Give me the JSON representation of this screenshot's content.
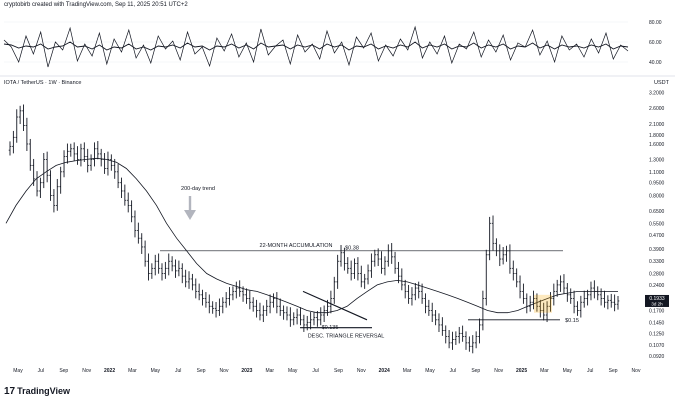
{
  "header": {
    "credit": "cryptobirb created with TradingView.com, Sep 11, 2025 20:51 UTC+2"
  },
  "main": {
    "symbol": "IOTA / TetherUS · 1W · Binance",
    "unit": "USDT"
  },
  "footer": {
    "brand": "TradingView",
    "logo_icon": "tradingview-logo-icon"
  },
  "chart_data": [
    {
      "type": "line",
      "panel": "oscillator",
      "y_ticks": [
        "80.00",
        "60.00",
        "40.00"
      ],
      "ylim": [
        30,
        90
      ],
      "series": [
        {
          "values": [
            62,
            55,
            40,
            66,
            48,
            70,
            35,
            60,
            52,
            74,
            41,
            58,
            46,
            69,
            38,
            63,
            50,
            72,
            44,
            57,
            39,
            66,
            53,
            61,
            42,
            70,
            48,
            55,
            36,
            64,
            51,
            68,
            45,
            59,
            40,
            73,
            47,
            56,
            62,
            38,
            67,
            50,
            58,
            43,
            71,
            49,
            60,
            37,
            65,
            54,
            69,
            41,
            57,
            46,
            63,
            52,
            75,
            44,
            60,
            48,
            66,
            39,
            58,
            53,
            70,
            45,
            62,
            50,
            67,
            42,
            59,
            55,
            72,
            47,
            61,
            40,
            66,
            52,
            58,
            45,
            63,
            49,
            69,
            43,
            57,
            51
          ]
        },
        {
          "values": [
            58,
            57,
            54,
            56,
            55,
            58,
            53,
            55,
            56,
            60,
            55,
            56,
            53,
            57,
            52,
            55,
            54,
            58,
            53,
            55,
            52,
            56,
            55,
            57,
            54,
            59,
            55,
            56,
            52,
            56,
            55,
            58,
            54,
            57,
            53,
            59,
            55,
            56,
            57,
            53,
            57,
            55,
            57,
            53,
            58,
            55,
            57,
            52,
            56,
            55,
            58,
            53,
            56,
            54,
            57,
            55,
            60,
            54,
            57,
            55,
            58,
            53,
            56,
            55,
            59,
            54,
            57,
            55,
            58,
            53,
            56,
            55,
            59,
            54,
            57,
            53,
            57,
            55,
            56,
            54,
            57,
            55,
            58,
            53,
            56,
            55
          ]
        }
      ]
    },
    {
      "type": "ohlc",
      "panel": "price",
      "title": "",
      "xlabel": "",
      "ylabel": "USDT",
      "log_scale": true,
      "ylim": [
        0.085,
        3.4
      ],
      "y_ticks": [
        "3.2000",
        "2.6000",
        "2.1000",
        "1.8000",
        "1.6000",
        "1.3000",
        "1.1000",
        "0.9500",
        "0.8000",
        "0.6500",
        "0.5500",
        "0.4700",
        "0.3900",
        "0.3300",
        "0.2800",
        "0.2400",
        "0.2000",
        "0.1700",
        "0.1450",
        "0.1250",
        "0.1070",
        "0.0920"
      ],
      "x_ticks": [
        "May",
        "Jul",
        "Sep",
        "Nov",
        "2022",
        "Mar",
        "May",
        "Jul",
        "Sep",
        "Nov",
        "2023",
        "Mar",
        "May",
        "Jul",
        "Sep",
        "Nov",
        "2024",
        "Mar",
        "May",
        "Jul",
        "Sep",
        "Nov",
        "2025",
        "Mar",
        "May",
        "Jul",
        "Sep",
        "Nov"
      ],
      "closes": [
        1.55,
        1.75,
        2.3,
        2.5,
        2.05,
        1.6,
        1.2,
        1.0,
        0.85,
        0.95,
        1.3,
        1.05,
        0.8,
        0.7,
        0.9,
        1.1,
        1.35,
        1.45,
        1.5,
        1.4,
        1.3,
        1.5,
        1.35,
        1.2,
        1.3,
        1.5,
        1.4,
        1.3,
        1.15,
        1.3,
        1.2,
        1.1,
        0.95,
        0.85,
        0.75,
        0.7,
        0.6,
        0.5,
        0.45,
        0.4,
        0.33,
        0.28,
        0.3,
        0.33,
        0.3,
        0.28,
        0.3,
        0.33,
        0.31,
        0.29,
        0.3,
        0.27,
        0.25,
        0.26,
        0.24,
        0.22,
        0.21,
        0.2,
        0.19,
        0.18,
        0.175,
        0.17,
        0.18,
        0.19,
        0.2,
        0.21,
        0.22,
        0.23,
        0.22,
        0.21,
        0.2,
        0.19,
        0.18,
        0.17,
        0.16,
        0.17,
        0.18,
        0.19,
        0.2,
        0.18,
        0.17,
        0.165,
        0.16,
        0.15,
        0.155,
        0.16,
        0.15,
        0.14,
        0.145,
        0.15,
        0.155,
        0.15,
        0.16,
        0.17,
        0.18,
        0.2,
        0.25,
        0.33,
        0.37,
        0.32,
        0.3,
        0.28,
        0.32,
        0.28,
        0.25,
        0.26,
        0.29,
        0.33,
        0.36,
        0.34,
        0.3,
        0.33,
        0.38,
        0.35,
        0.3,
        0.27,
        0.24,
        0.22,
        0.2,
        0.21,
        0.23,
        0.22,
        0.2,
        0.18,
        0.17,
        0.16,
        0.15,
        0.14,
        0.13,
        0.12,
        0.11,
        0.115,
        0.12,
        0.125,
        0.12,
        0.11,
        0.105,
        0.11,
        0.12,
        0.14,
        0.2,
        0.36,
        0.55,
        0.42,
        0.38,
        0.34,
        0.36,
        0.38,
        0.3,
        0.28,
        0.25,
        0.22,
        0.2,
        0.18,
        0.19,
        0.2,
        0.18,
        0.17,
        0.16,
        0.18,
        0.2,
        0.22,
        0.24,
        0.25,
        0.23,
        0.21,
        0.2,
        0.18,
        0.17,
        0.19,
        0.2,
        0.21,
        0.23,
        0.22,
        0.21,
        0.2,
        0.19,
        0.195,
        0.19,
        0.185,
        0.1933
      ],
      "ma": {
        "values": [
          0.55,
          0.7,
          0.85,
          1.0,
          1.1,
          1.2,
          1.25,
          1.28,
          1.3,
          1.32,
          1.3,
          1.25,
          1.15,
          1.0,
          0.85,
          0.7,
          0.55,
          0.45,
          0.38,
          0.32,
          0.28,
          0.26,
          0.245,
          0.235,
          0.225,
          0.22,
          0.21,
          0.2,
          0.19,
          0.18,
          0.17,
          0.165,
          0.165,
          0.17,
          0.18,
          0.2,
          0.22,
          0.24,
          0.25,
          0.255,
          0.25,
          0.24,
          0.23,
          0.22,
          0.21,
          0.2,
          0.19,
          0.18,
          0.17,
          0.165,
          0.165,
          0.17,
          0.18,
          0.19,
          0.2,
          0.21,
          0.215,
          0.22,
          0.22,
          0.22,
          0.22,
          0.22
        ]
      },
      "annotations": {
        "trend": "200-day trend",
        "accumulation": "22-MONTH ACCUMULATION",
        "level_high": "$0.38",
        "level_mid": "$0.135",
        "level_low": "$0.15",
        "triangle": "DESC. TRIANGLE REVERSAL"
      },
      "last_price": "0.1933",
      "countdown": "3d 2h"
    }
  ]
}
